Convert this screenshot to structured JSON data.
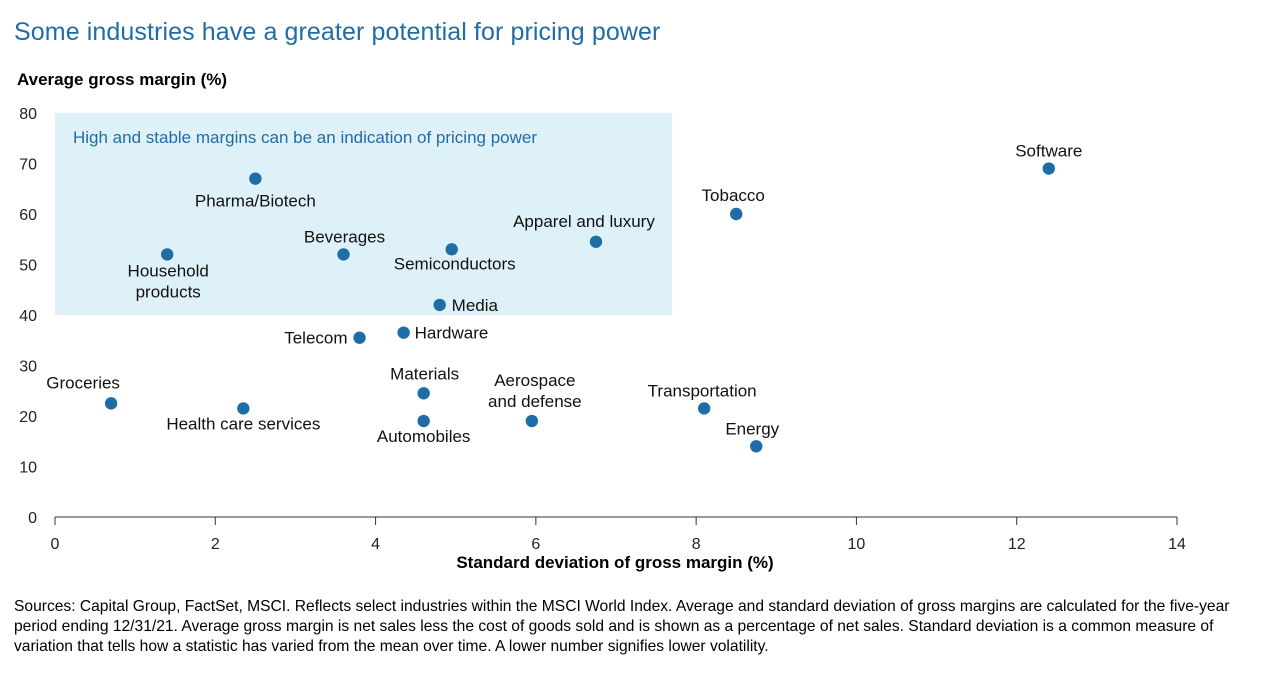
{
  "title": "Some industries have a greater potential for pricing power",
  "sources": "Sources: Capital Group, FactSet, MSCI. Reflects select industries within the MSCI World Index. Average and standard deviation of gross margins are calculated for the five-year period ending 12/31/21. Average gross margin is net sales less the cost of goods sold and is shown as a percentage of net sales. Standard deviation is a common measure of variation that tells how a statistic has varied from the mean over time. A lower number signifies lower volatility.",
  "colors": {
    "title": "#1f6da6",
    "point": "#1f6da6",
    "highlight_fill": "#def1f8",
    "highlight_text": "#1f6da6"
  },
  "chart_data": {
    "type": "scatter",
    "title": "Some industries have a greater potential for pricing power",
    "xlabel": "Standard deviation of gross margin (%)",
    "ylabel": "Average gross margin (%)",
    "xlim": [
      0,
      14
    ],
    "ylim": [
      0,
      80
    ],
    "xticks": [
      0,
      2,
      4,
      6,
      8,
      10,
      12,
      14
    ],
    "yticks": [
      0,
      10,
      20,
      30,
      40,
      50,
      60,
      70,
      80
    ],
    "grid": false,
    "highlight_region": {
      "x": [
        0,
        7.7
      ],
      "y": [
        40,
        80
      ],
      "label": "High and stable margins can be an indication of pricing power"
    },
    "points": [
      {
        "label": "Software",
        "x": 12.4,
        "y": 69
      },
      {
        "label": "Tobacco",
        "x": 8.5,
        "y": 60
      },
      {
        "label": "Pharma/Biotech",
        "x": 2.5,
        "y": 67
      },
      {
        "label": "Apparel and luxury",
        "x": 6.75,
        "y": 54.5
      },
      {
        "label": "Beverages",
        "x": 3.6,
        "y": 52
      },
      {
        "label": "Semiconductors",
        "x": 4.95,
        "y": 53
      },
      {
        "label": "Household products",
        "x": 1.4,
        "y": 52
      },
      {
        "label": "Media",
        "x": 4.8,
        "y": 42
      },
      {
        "label": "Hardware",
        "x": 4.35,
        "y": 36.5
      },
      {
        "label": "Telecom",
        "x": 3.8,
        "y": 35.5
      },
      {
        "label": "Materials",
        "x": 4.6,
        "y": 24.5
      },
      {
        "label": "Groceries",
        "x": 0.7,
        "y": 22.5
      },
      {
        "label": "Health care services",
        "x": 2.35,
        "y": 21.5
      },
      {
        "label": "Automobiles",
        "x": 4.6,
        "y": 19
      },
      {
        "label": "Aerospace and defense",
        "x": 5.95,
        "y": 19
      },
      {
        "label": "Transportation",
        "x": 8.1,
        "y": 21.5
      },
      {
        "label": "Energy",
        "x": 8.75,
        "y": 14
      }
    ]
  }
}
